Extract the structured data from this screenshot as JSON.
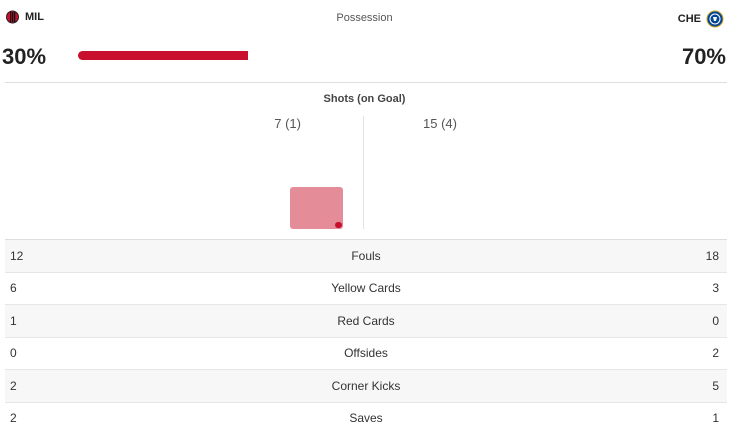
{
  "home": {
    "abbr": "MIL",
    "possession": "30%",
    "shots": "7 (1)"
  },
  "away": {
    "abbr": "CHE",
    "possession": "70%",
    "shots": "15 (4)"
  },
  "possession": {
    "title": "Possession",
    "home_fraction": 0.3,
    "away_fraction": 0.7
  },
  "shots": {
    "title": "Shots (on Goal)"
  },
  "colors": {
    "accent": "#c8102e",
    "shot_box": "#e48c98"
  },
  "stats": [
    {
      "label": "Fouls",
      "home": "12",
      "away": "18"
    },
    {
      "label": "Yellow Cards",
      "home": "6",
      "away": "3"
    },
    {
      "label": "Red Cards",
      "home": "1",
      "away": "0"
    },
    {
      "label": "Offsides",
      "home": "0",
      "away": "2"
    },
    {
      "label": "Corner Kicks",
      "home": "2",
      "away": "5"
    },
    {
      "label": "Saves",
      "home": "2",
      "away": "1"
    }
  ]
}
